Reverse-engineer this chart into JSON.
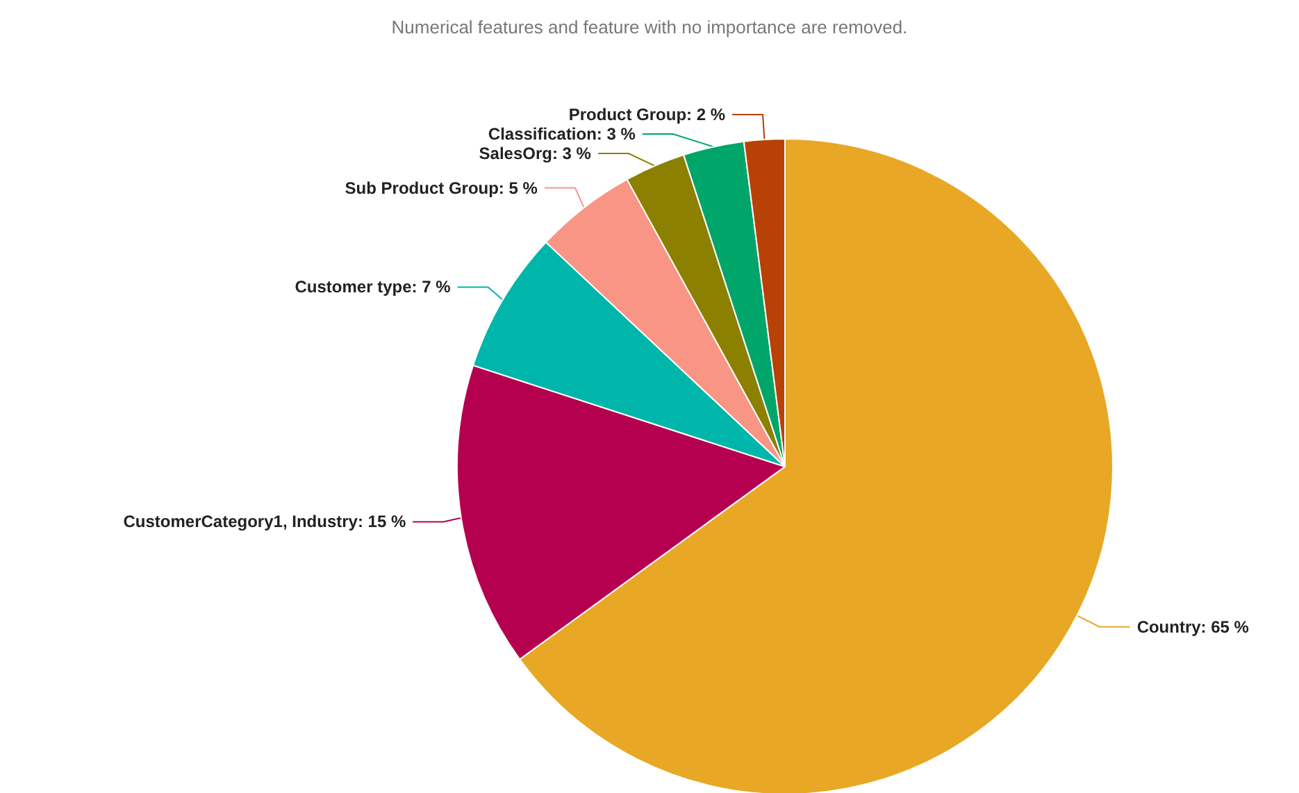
{
  "chart_data": {
    "type": "pie",
    "subtitle": "Numerical features and feature with no importance are removed.",
    "categories": [
      "Country",
      "CustomerCategory1, Industry",
      "Customer type",
      "Sub Product Group",
      "SalesOrg",
      "Classification",
      "Product Group"
    ],
    "values": [
      65,
      15,
      7,
      5,
      3,
      3,
      2
    ],
    "colors": [
      "#e8a825",
      "#b5004f",
      "#00b5a9",
      "#f99585",
      "#8b8000",
      "#00a56a",
      "#b84105"
    ],
    "value_labels": [
      ": 65 %",
      ": 15 %",
      ": 7 %",
      ": 5 %",
      ": 3 %",
      ": 3 %",
      ": 2 %"
    ],
    "legend": false
  }
}
